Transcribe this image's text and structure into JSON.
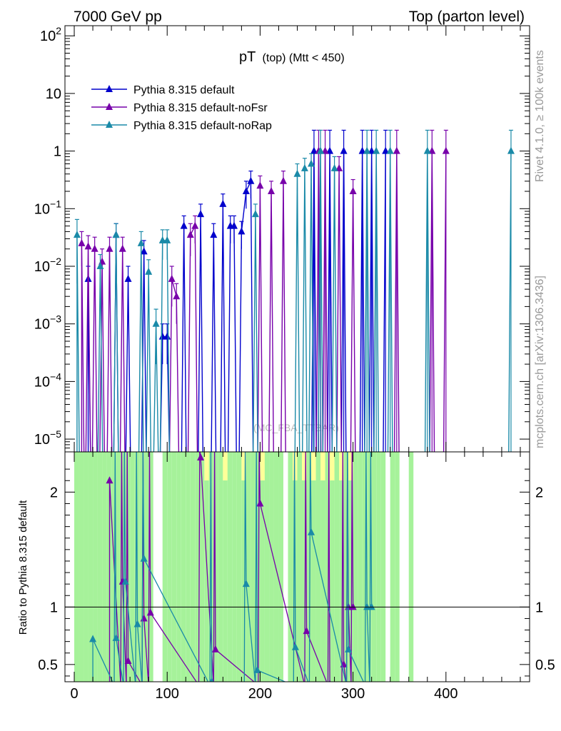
{
  "header": {
    "left": "7000 GeV pp",
    "right": "Top (parton level)"
  },
  "side_labels": {
    "rivet": "Rivet 4.1.0, ≥ 100k events",
    "mcplots": "mcplots.cern.ch [arXiv:1306.3436]"
  },
  "watermark": "(MC_FBA_TTBAR)",
  "chart_data": [
    {
      "type": "line",
      "panel": "main",
      "title": "pT",
      "title_sub": "(top) (Mtt < 450)",
      "xlabel": "",
      "ylabel": "",
      "yscale": "log",
      "xlim": [
        -10,
        490
      ],
      "ylim": [
        6e-06,
        150
      ],
      "y_tick_labels": [
        "10^-5",
        "10^-4",
        "10^-3",
        "10^-2",
        "10^-1",
        "1",
        "10",
        "10^2"
      ],
      "y_tick_values": [
        1e-05,
        0.0001,
        0.001,
        0.01,
        0.1,
        1,
        10,
        100
      ],
      "legend": {
        "placement": "top-left",
        "entries": [
          "Pythia 8.315 default",
          "Pythia 8.315 default-noFsr",
          "Pythia 8.315 default-noRap"
        ]
      },
      "series": [
        {
          "name": "Pythia 8.315 default",
          "color": "#0000cc",
          "points": [
            {
              "x": 15,
              "y": 0.006,
              "err": 0.004
            },
            {
              "x": 45,
              "y": 0.035,
              "err": 0.02
            },
            {
              "x": 58,
              "y": 0.006,
              "err": 0.004
            },
            {
              "x": 75,
              "y": 0.018,
              "err": 0.01
            },
            {
              "x": 95,
              "y": 0.0006,
              "err": 0.0004
            },
            {
              "x": 100,
              "y": 0.0006,
              "err": 0.0004
            },
            {
              "x": 118,
              "y": 0.05,
              "err": 0.025
            },
            {
              "x": 136,
              "y": 0.08,
              "err": 0.04
            },
            {
              "x": 150,
              "y": 0.035,
              "err": 0.02
            },
            {
              "x": 160,
              "y": 0.12,
              "err": 0.06
            },
            {
              "x": 168,
              "y": 0.05,
              "err": 0.025
            },
            {
              "x": 172,
              "y": 0.05,
              "err": 0.025
            },
            {
              "x": 180,
              "y": 0.04,
              "err": 0.02
            },
            {
              "x": 185,
              "y": 0.2,
              "err": 0.1
            },
            {
              "x": 190,
              "y": 0.3,
              "err": 0.15
            },
            {
              "x": 258,
              "y": 1.0,
              "err": 1.3
            },
            {
              "x": 275,
              "y": 1.0,
              "err": 1.3
            },
            {
              "x": 290,
              "y": 1.0,
              "err": 1.3
            },
            {
              "x": 310,
              "y": 1.0,
              "err": 1.3
            },
            {
              "x": 320,
              "y": 1.0,
              "err": 1.3
            },
            {
              "x": 335,
              "y": 1.0,
              "err": 1.3
            }
          ]
        },
        {
          "name": "Pythia 8.315 default-noFsr",
          "color": "#7700aa",
          "points": [
            {
              "x": 8,
              "y": 0.025,
              "err": 0.015
            },
            {
              "x": 15,
              "y": 0.022,
              "err": 0.012
            },
            {
              "x": 22,
              "y": 0.02,
              "err": 0.012
            },
            {
              "x": 30,
              "y": 0.012,
              "err": 0.008
            },
            {
              "x": 38,
              "y": 0.02,
              "err": 0.012
            },
            {
              "x": 52,
              "y": 0.02,
              "err": 0.012
            },
            {
              "x": 105,
              "y": 0.006,
              "err": 0.004
            },
            {
              "x": 110,
              "y": 0.003,
              "err": 0.002
            },
            {
              "x": 125,
              "y": 0.035,
              "err": 0.02
            },
            {
              "x": 130,
              "y": 0.05,
              "err": 0.025
            },
            {
              "x": 200,
              "y": 0.25,
              "err": 0.12
            },
            {
              "x": 212,
              "y": 0.2,
              "err": 0.1
            },
            {
              "x": 225,
              "y": 0.3,
              "err": 0.15
            },
            {
              "x": 263,
              "y": 1.0,
              "err": 1.3
            },
            {
              "x": 270,
              "y": 1.0,
              "err": 1.3
            },
            {
              "x": 285,
              "y": 0.5,
              "err": 0.3
            },
            {
              "x": 300,
              "y": 0.2,
              "err": 0.12
            },
            {
              "x": 347,
              "y": 1.0,
              "err": 1.3
            },
            {
              "x": 385,
              "y": 1.0,
              "err": 1.3
            },
            {
              "x": 400,
              "y": 1.0,
              "err": 1.3
            }
          ]
        },
        {
          "name": "Pythia 8.315 default-noRap",
          "color": "#1a8aa8",
          "points": [
            {
              "x": 3,
              "y": 0.035,
              "err": 0.03
            },
            {
              "x": 28,
              "y": 0.01,
              "err": 0.006
            },
            {
              "x": 45,
              "y": 0.035,
              "err": 0.02
            },
            {
              "x": 72,
              "y": 0.025,
              "err": 0.015
            },
            {
              "x": 80,
              "y": 0.008,
              "err": 0.005
            },
            {
              "x": 88,
              "y": 0.001,
              "err": 0.0008
            },
            {
              "x": 95,
              "y": 0.028,
              "err": 0.015
            },
            {
              "x": 100,
              "y": 0.028,
              "err": 0.015
            },
            {
              "x": 195,
              "y": 0.08,
              "err": 0.04
            },
            {
              "x": 240,
              "y": 0.4,
              "err": 0.2
            },
            {
              "x": 248,
              "y": 0.5,
              "err": 0.25
            },
            {
              "x": 255,
              "y": 0.6,
              "err": 0.3
            },
            {
              "x": 265,
              "y": 1.0,
              "err": 1.3
            },
            {
              "x": 280,
              "y": 0.5,
              "err": 0.3
            },
            {
              "x": 315,
              "y": 1.0,
              "err": 1.3
            },
            {
              "x": 325,
              "y": 1.0,
              "err": 1.3
            },
            {
              "x": 340,
              "y": 1.0,
              "err": 1.3
            },
            {
              "x": 380,
              "y": 1.0,
              "err": 1.3
            },
            {
              "x": 470,
              "y": 1.0,
              "err": 1.3
            }
          ]
        }
      ]
    },
    {
      "type": "line",
      "panel": "ratio",
      "xlabel": "",
      "ylabel": "Ratio to Pythia 8.315 default",
      "xlim": [
        -10,
        490
      ],
      "ylim": [
        0.35,
        2.35
      ],
      "x_ticks": [
        0,
        100,
        200,
        300,
        400
      ],
      "y_ticks": [
        0.5,
        1,
        2
      ],
      "reference_line": 1,
      "series": [
        {
          "name": "Pythia 8.315 default-noFsr",
          "color": "#7700aa",
          "points": [
            {
              "x": 38,
              "y": 2.1
            },
            {
              "x": 52,
              "y": 1.22
            },
            {
              "x": 58,
              "y": 0.53
            },
            {
              "x": 75,
              "y": 0.9
            },
            {
              "x": 82,
              "y": 0.95
            },
            {
              "x": 136,
              "y": 2.3
            },
            {
              "x": 152,
              "y": 0.63
            },
            {
              "x": 200,
              "y": 1.9
            },
            {
              "x": 250,
              "y": 0.79
            },
            {
              "x": 290,
              "y": 0.5
            },
            {
              "x": 295,
              "y": 1.0
            },
            {
              "x": 300,
              "y": 1.0
            },
            {
              "x": 275,
              "y": 0.33
            }
          ]
        },
        {
          "name": "Pythia 8.315 default-noRap",
          "color": "#1a8aa8",
          "points": [
            {
              "x": 20,
              "y": 0.72
            },
            {
              "x": 45,
              "y": 0.73
            },
            {
              "x": 55,
              "y": 1.22
            },
            {
              "x": 68,
              "y": 0.85
            },
            {
              "x": 75,
              "y": 1.42
            },
            {
              "x": 185,
              "y": 1.2
            },
            {
              "x": 197,
              "y": 0.45
            },
            {
              "x": 238,
              "y": 0.65
            },
            {
              "x": 255,
              "y": 1.65
            },
            {
              "x": 295,
              "y": 0.63
            },
            {
              "x": 315,
              "y": 1.0
            },
            {
              "x": 320,
              "y": 1.0
            },
            {
              "x": 148,
              "y": 0.35
            }
          ]
        }
      ]
    }
  ]
}
